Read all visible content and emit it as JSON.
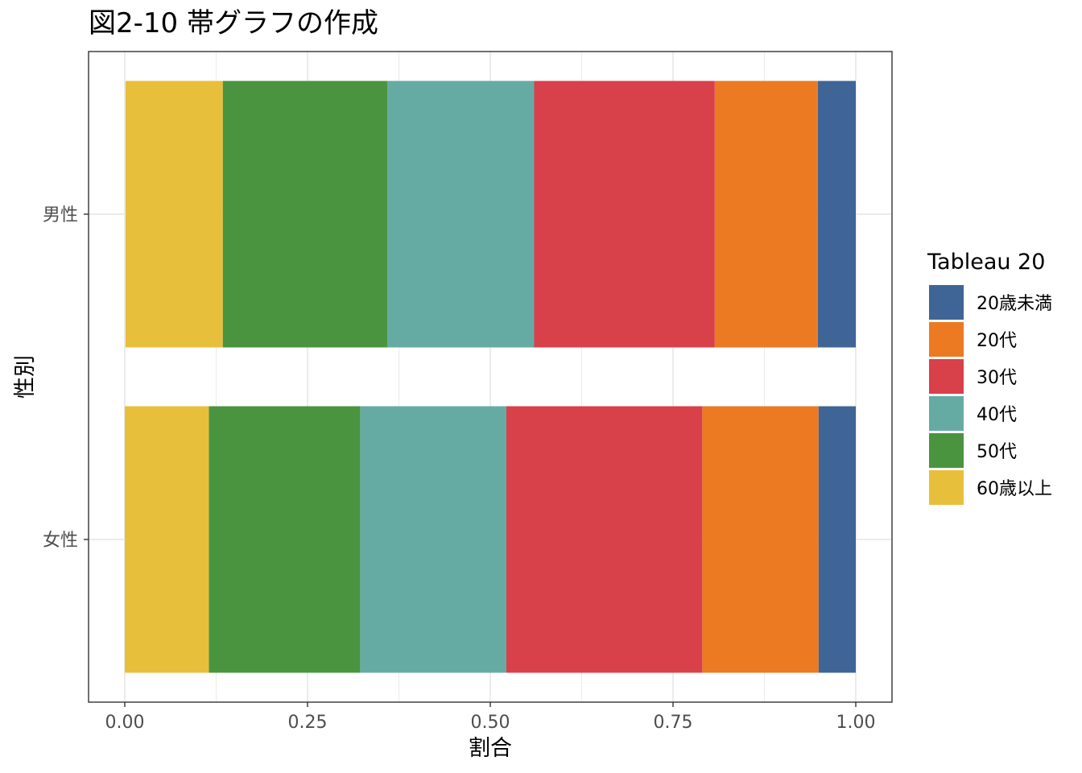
{
  "chart_data": {
    "type": "bar",
    "orientation": "horizontal",
    "stacked": "proportion",
    "title": "図2-10 帯グラフの作成",
    "xlabel": "割合",
    "ylabel": "性別",
    "xlim": [
      0,
      1
    ],
    "xticks": [
      0,
      0.25,
      0.5,
      0.75,
      1
    ],
    "xtick_labels": [
      "0.00",
      "0.25",
      "0.50",
      "0.75",
      "1.00"
    ],
    "categories": [
      "男性",
      "女性"
    ],
    "legend": {
      "title": "Tableau 20",
      "position": "right"
    },
    "grid": true,
    "series": [
      {
        "name": "20歳未満",
        "color": "#3F6496",
        "values": [
          0.052,
          0.051
        ]
      },
      {
        "name": "20代",
        "color": "#EB7A23",
        "values": [
          0.141,
          0.159
        ]
      },
      {
        "name": "30代",
        "color": "#D8404A",
        "values": [
          0.247,
          0.268
        ]
      },
      {
        "name": "40代",
        "color": "#66ABA3",
        "values": [
          0.201,
          0.2
        ]
      },
      {
        "name": "50代",
        "color": "#4A943F",
        "values": [
          0.225,
          0.207
        ]
      },
      {
        "name": "60歳以上",
        "color": "#E8BF3A",
        "values": [
          0.133,
          0.115
        ]
      }
    ]
  }
}
